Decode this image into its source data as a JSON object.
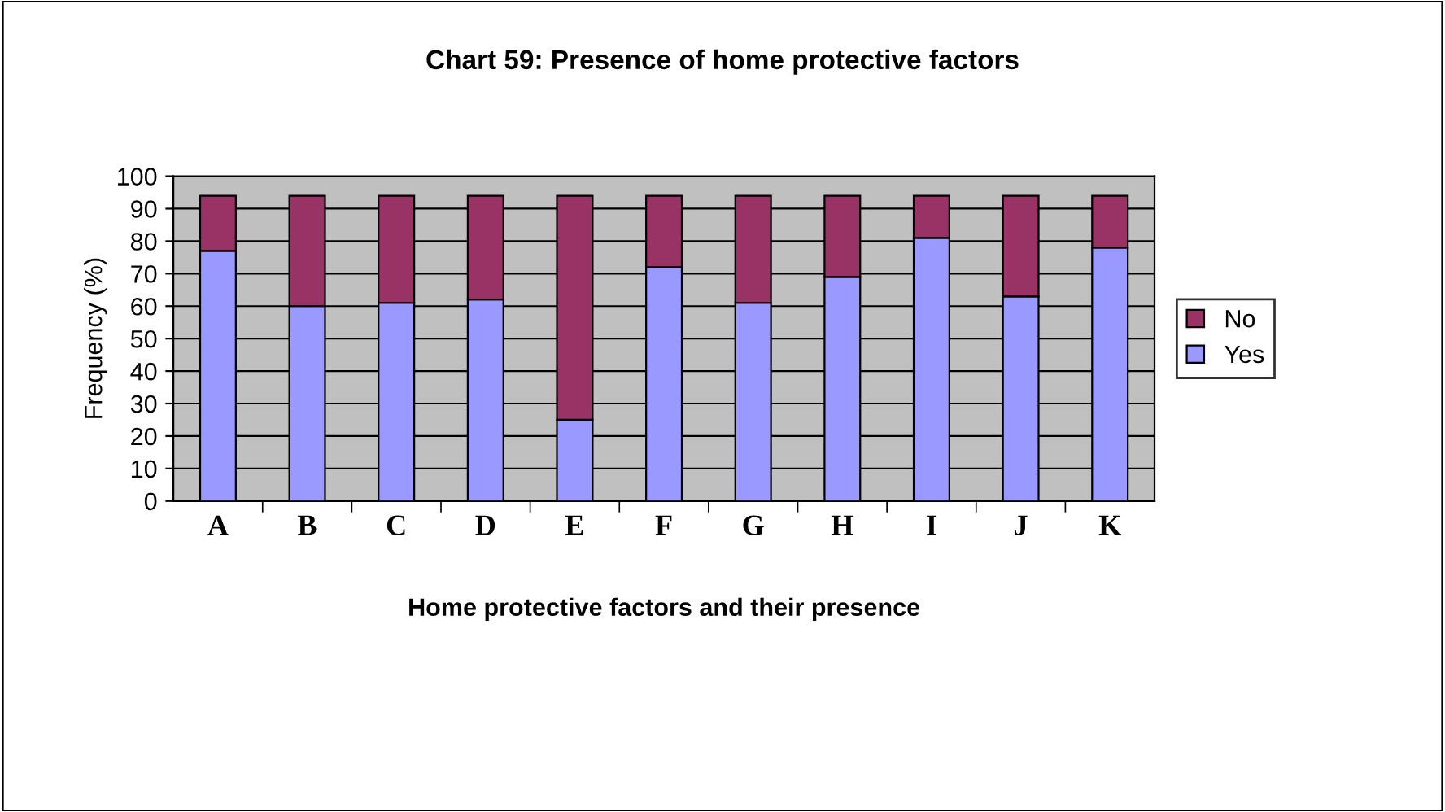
{
  "chart_data": {
    "type": "bar",
    "stacked": true,
    "title": "Chart 59: Presence of home protective factors",
    "xlabel": "Home protective factors and their presence",
    "ylabel": "Frequency (%)",
    "categories": [
      "A",
      "B",
      "C",
      "D",
      "E",
      "F",
      "G",
      "H",
      "I",
      "J",
      "K"
    ],
    "series": [
      {
        "name": "Yes",
        "color": "#9999ff",
        "values": [
          77,
          60,
          61,
          62,
          25,
          72,
          61,
          69,
          81,
          63,
          78
        ]
      },
      {
        "name": "No",
        "color": "#993366",
        "values": [
          17,
          34,
          33,
          32,
          69,
          22,
          33,
          25,
          13,
          31,
          16
        ]
      }
    ],
    "ylim": [
      0,
      100
    ],
    "yticks": [
      0,
      10,
      20,
      30,
      40,
      50,
      60,
      70,
      80,
      90,
      100
    ],
    "grid": "y",
    "legend": "right"
  }
}
